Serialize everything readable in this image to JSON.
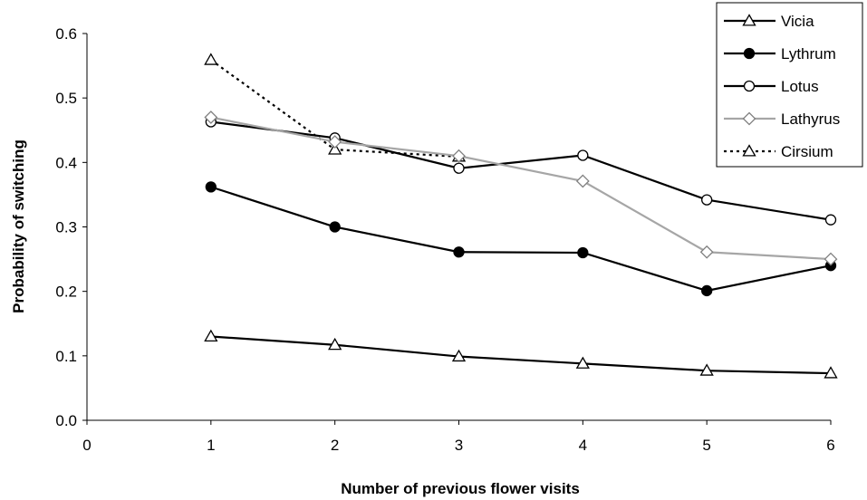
{
  "chart_data": {
    "type": "line",
    "xlabel": "Number of previous flower visits",
    "ylabel": "Probability of switching",
    "xlim": [
      0,
      6
    ],
    "ylim": [
      0,
      0.6
    ],
    "x_ticks": [
      "0",
      "1",
      "2",
      "3",
      "4",
      "5",
      "6"
    ],
    "y_ticks": [
      "0.0",
      "0.1",
      "0.2",
      "0.3",
      "0.4",
      "0.5",
      "0.6"
    ],
    "grid": false,
    "legend_position": "top-right",
    "series": [
      {
        "name": "Vicia",
        "color": "#000000",
        "marker": "triangle-open",
        "dashed": false,
        "points": [
          [
            1,
            0.13
          ],
          [
            2,
            0.117
          ],
          [
            3,
            0.099
          ],
          [
            4,
            0.088
          ],
          [
            5,
            0.077
          ],
          [
            6,
            0.073
          ]
        ]
      },
      {
        "name": "Lythrum",
        "color": "#000000",
        "marker": "circle-filled",
        "dashed": false,
        "points": [
          [
            1,
            0.362
          ],
          [
            2,
            0.3
          ],
          [
            3,
            0.261
          ],
          [
            4,
            0.26
          ],
          [
            5,
            0.201
          ],
          [
            6,
            0.24
          ]
        ]
      },
      {
        "name": "Lotus",
        "color": "#000000",
        "marker": "circle-open",
        "dashed": false,
        "points": [
          [
            1,
            0.463
          ],
          [
            2,
            0.438
          ],
          [
            3,
            0.391
          ],
          [
            4,
            0.411
          ],
          [
            5,
            0.342
          ],
          [
            6,
            0.311
          ]
        ]
      },
      {
        "name": "Lathyrus",
        "color": "#a6a6a6",
        "marker": "diamond-open",
        "dashed": false,
        "points": [
          [
            1,
            0.47
          ],
          [
            2,
            0.432
          ],
          [
            3,
            0.41
          ],
          [
            4,
            0.371
          ],
          [
            5,
            0.261
          ],
          [
            6,
            0.25
          ]
        ]
      },
      {
        "name": "Cirsium",
        "color": "#000000",
        "marker": "triangle-open",
        "dashed": true,
        "points": [
          [
            1,
            0.559
          ],
          [
            2,
            0.42
          ],
          [
            3,
            0.409
          ]
        ]
      }
    ]
  }
}
